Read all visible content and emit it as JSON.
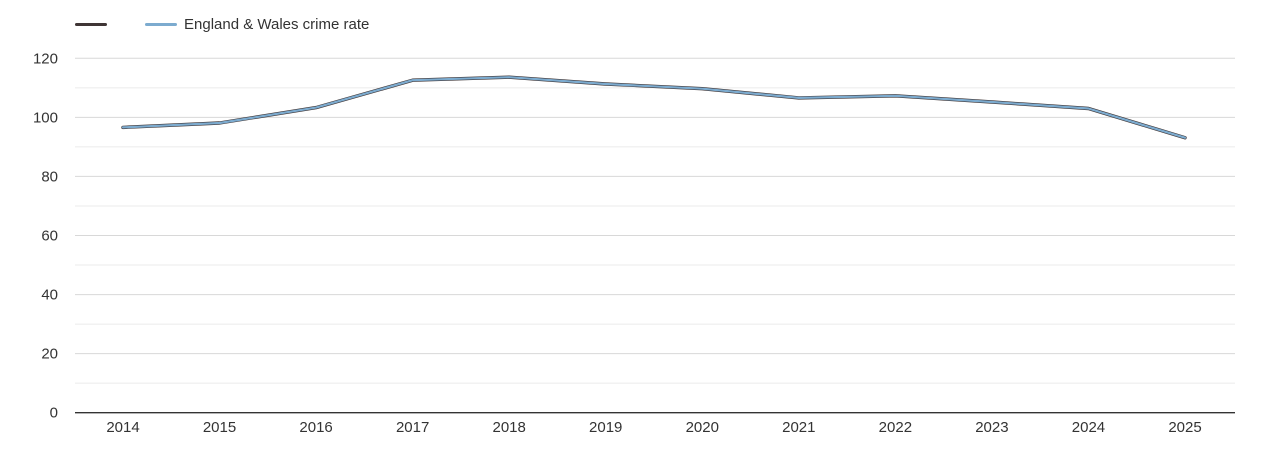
{
  "chart_data": {
    "type": "line",
    "title": "",
    "xlabel": "",
    "ylabel": "",
    "categories": [
      "2014",
      "2015",
      "2016",
      "2017",
      "2018",
      "2019",
      "2020",
      "2021",
      "2022",
      "2023",
      "2024",
      "2025"
    ],
    "series": [
      {
        "name": "",
        "color": "#3f3535",
        "line_width": 3.4,
        "values": [
          96.6,
          98.1,
          103.3,
          112.6,
          113.6,
          111.3,
          109.7,
          106.6,
          107.3,
          105.2,
          103.0,
          93.1
        ]
      },
      {
        "name": "England & Wales crime rate",
        "color": "#7cabcf",
        "line_width": 2.2,
        "values": [
          96.6,
          98.1,
          103.3,
          112.6,
          113.6,
          111.3,
          109.7,
          106.6,
          107.3,
          105.2,
          103.0,
          93.1
        ]
      }
    ],
    "ylim": [
      0,
      120
    ],
    "y_major_ticks": [
      0,
      20,
      40,
      60,
      80,
      100,
      120
    ],
    "y_minor_ticks": [
      10,
      30,
      50,
      70,
      90,
      110
    ],
    "grid": true,
    "legend_position": "top-left",
    "colors": {
      "axis_text": "#333333",
      "axis_line": "#333333",
      "grid_major": "#d8d8d8",
      "grid_minor": "#ebebeb"
    }
  }
}
